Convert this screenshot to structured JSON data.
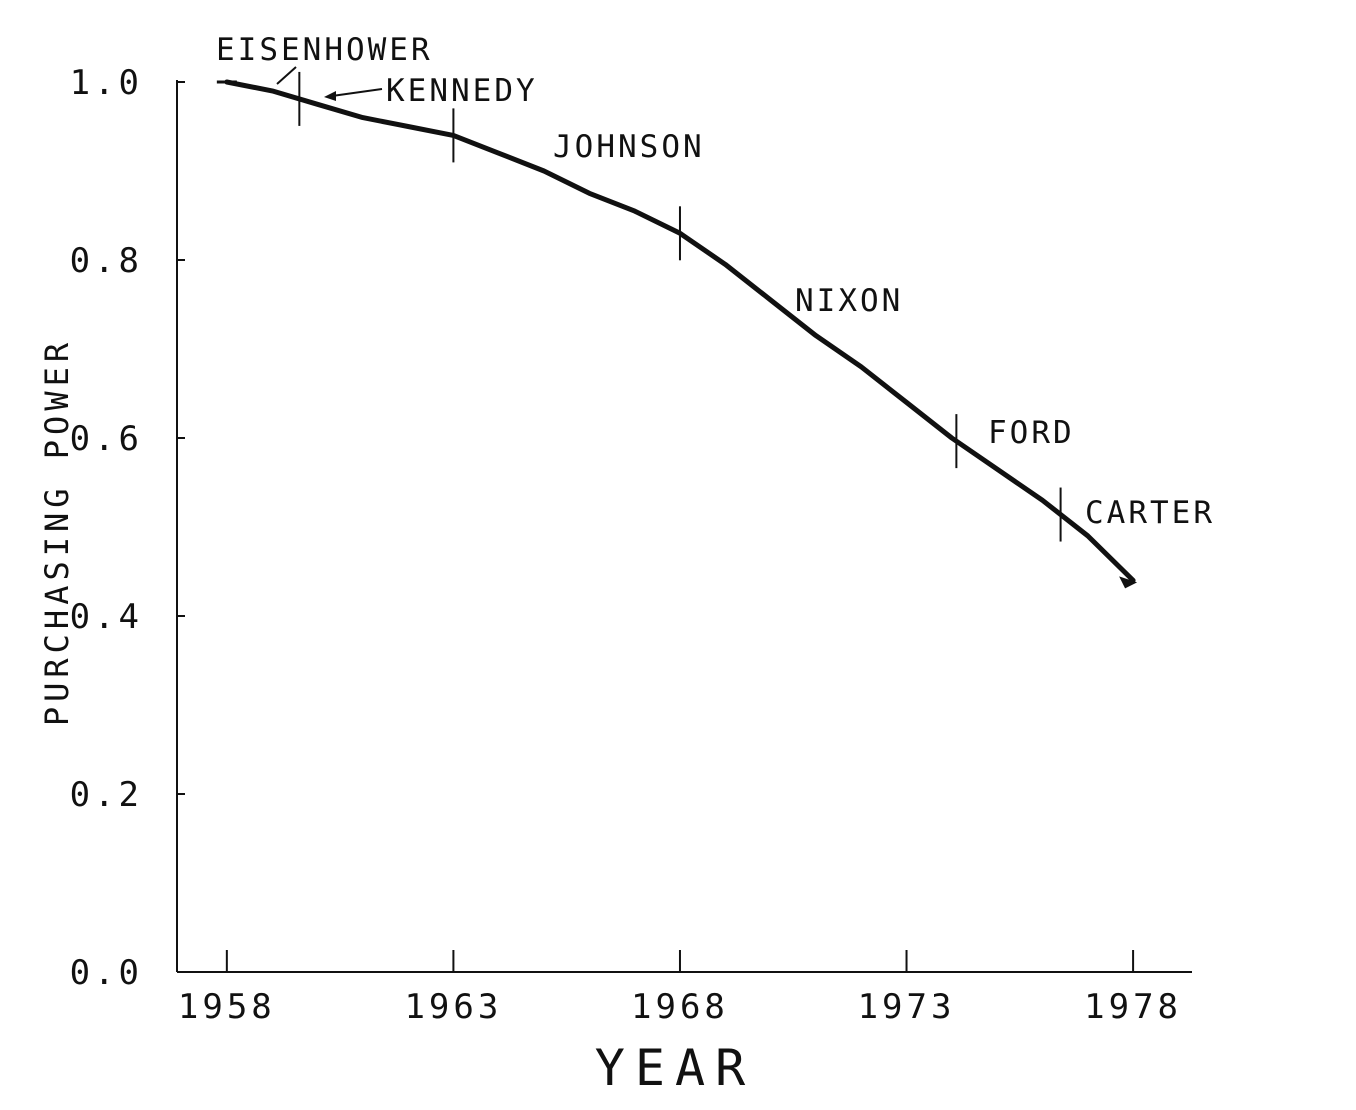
{
  "chart_data": {
    "type": "line",
    "xlabel": "YEAR",
    "ylabel": "PURCHASING POWER",
    "xlim": [
      1956.9,
      1979.3
    ],
    "ylim": [
      0,
      1.0
    ],
    "x_ticks": [
      1958,
      1963,
      1968,
      1973,
      1978
    ],
    "x_tick_labels": [
      "1958",
      "1963",
      "1968",
      "1973",
      "1978"
    ],
    "y_ticks": [
      0.0,
      0.2,
      0.4,
      0.6,
      0.8,
      1.0
    ],
    "y_tick_labels": [
      "0.0",
      "0.2",
      "0.4",
      "0.6",
      "0.8",
      "1.0"
    ],
    "series": [
      {
        "x": [
          1958,
          1959,
          1960,
          1961,
          1962,
          1963,
          1964,
          1965,
          1966,
          1967,
          1968,
          1969,
          1970,
          1971,
          1972,
          1973,
          1974,
          1975,
          1976,
          1977,
          1978
        ],
        "y": [
          1.0,
          0.99,
          0.975,
          0.96,
          0.95,
          0.94,
          0.92,
          0.9,
          0.875,
          0.855,
          0.83,
          0.795,
          0.755,
          0.715,
          0.68,
          0.64,
          0.6,
          0.565,
          0.53,
          0.49,
          0.44
        ]
      }
    ],
    "term_boundaries": [
      1959.6,
      1963.0,
      1968.0,
      1974.1,
      1976.4
    ],
    "presidents": [
      {
        "name": "EISENHOWER"
      },
      {
        "name": "KENNEDY"
      },
      {
        "name": "JOHNSON"
      },
      {
        "name": "NIXON"
      },
      {
        "name": "FORD"
      },
      {
        "name": "CARTER"
      }
    ],
    "grid": false,
    "legend": "none",
    "line_color": "#111111"
  }
}
